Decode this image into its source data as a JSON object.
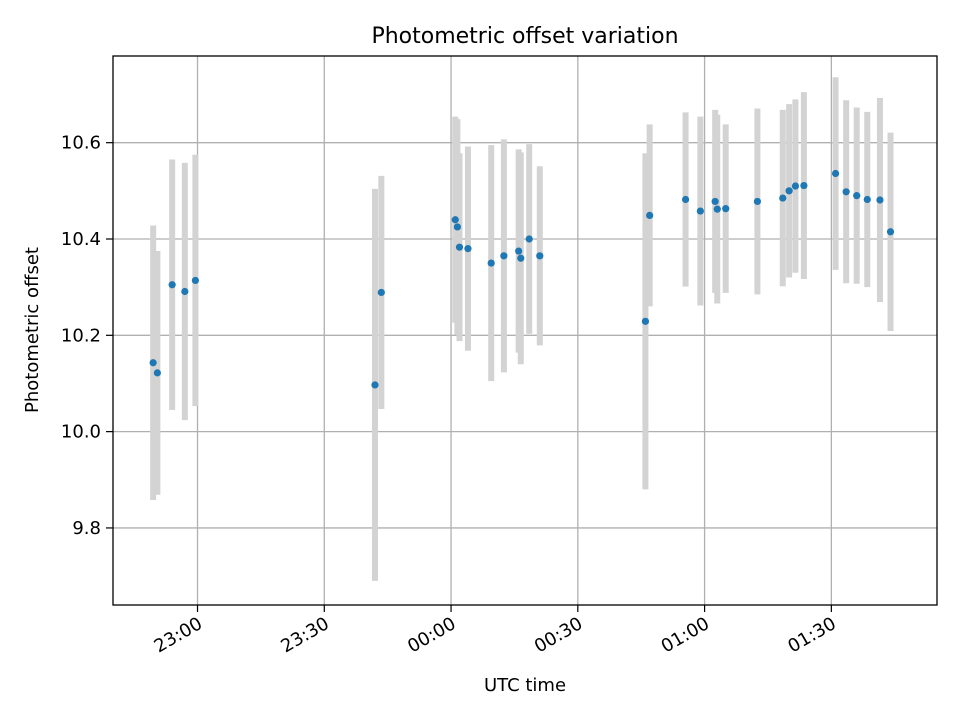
{
  "chart_data": {
    "type": "scatter",
    "title": "Photometric offset variation",
    "xlabel": "UTC time",
    "ylabel": "Photometric offset",
    "x_unit": "UTC time of night (continues past midnight)",
    "xlim": [
      "22:40",
      "01:55"
    ],
    "ylim": [
      9.64,
      10.78
    ],
    "x_ticks": [
      "23:00",
      "23:30",
      "00:00",
      "00:30",
      "01:00",
      "01:30"
    ],
    "y_ticks": [
      "9.8",
      "10.0",
      "10.2",
      "10.4",
      "10.6"
    ],
    "grid": true,
    "colors": {
      "points": "#1f77b4",
      "error_bars": "#d3d3d3",
      "grid": "#b0b0b0"
    },
    "points": [
      {
        "x": "22:49:30",
        "y": 10.143,
        "err": 0.285
      },
      {
        "x": "22:50:30",
        "y": 10.122,
        "err": 0.253
      },
      {
        "x": "22:54:00",
        "y": 10.305,
        "err": 0.26
      },
      {
        "x": "22:57:00",
        "y": 10.291,
        "err": 0.267
      },
      {
        "x": "22:59:30",
        "y": 10.314,
        "err": 0.261
      },
      {
        "x": "23:42:00",
        "y": 10.097,
        "err": 0.407
      },
      {
        "x": "23:43:30",
        "y": 10.289,
        "err": 0.242
      },
      {
        "x": "00:01:00",
        "y": 10.44,
        "err": 0.214
      },
      {
        "x": "00:01:30",
        "y": 10.425,
        "err": 0.224
      },
      {
        "x": "00:02:00",
        "y": 10.383,
        "err": 0.195
      },
      {
        "x": "00:04:00",
        "y": 10.38,
        "err": 0.212
      },
      {
        "x": "00:09:30",
        "y": 10.35,
        "err": 0.245
      },
      {
        "x": "00:12:30",
        "y": 10.365,
        "err": 0.242
      },
      {
        "x": "00:16:00",
        "y": 10.375,
        "err": 0.211
      },
      {
        "x": "00:16:30",
        "y": 10.36,
        "err": 0.22
      },
      {
        "x": "00:18:30",
        "y": 10.4,
        "err": 0.197
      },
      {
        "x": "00:21:00",
        "y": 10.365,
        "err": 0.186
      },
      {
        "x": "00:46:00",
        "y": 10.229,
        "err": 0.349
      },
      {
        "x": "00:47:00",
        "y": 10.449,
        "err": 0.189
      },
      {
        "x": "00:55:30",
        "y": 10.482,
        "err": 0.181
      },
      {
        "x": "00:59:00",
        "y": 10.458,
        "err": 0.196
      },
      {
        "x": "01:02:30",
        "y": 10.478,
        "err": 0.19
      },
      {
        "x": "01:03:00",
        "y": 10.462,
        "err": 0.196
      },
      {
        "x": "01:05:00",
        "y": 10.463,
        "err": 0.175
      },
      {
        "x": "01:12:30",
        "y": 10.478,
        "err": 0.193
      },
      {
        "x": "01:18:30",
        "y": 10.485,
        "err": 0.183
      },
      {
        "x": "01:20:00",
        "y": 10.5,
        "err": 0.18
      },
      {
        "x": "01:21:30",
        "y": 10.51,
        "err": 0.18
      },
      {
        "x": "01:23:30",
        "y": 10.511,
        "err": 0.194
      },
      {
        "x": "01:31:00",
        "y": 10.536,
        "err": 0.2
      },
      {
        "x": "01:33:30",
        "y": 10.498,
        "err": 0.19
      },
      {
        "x": "01:36:00",
        "y": 10.49,
        "err": 0.183
      },
      {
        "x": "01:38:30",
        "y": 10.482,
        "err": 0.182
      },
      {
        "x": "01:41:30",
        "y": 10.481,
        "err": 0.212
      },
      {
        "x": "01:44:00",
        "y": 10.415,
        "err": 0.206
      }
    ]
  }
}
